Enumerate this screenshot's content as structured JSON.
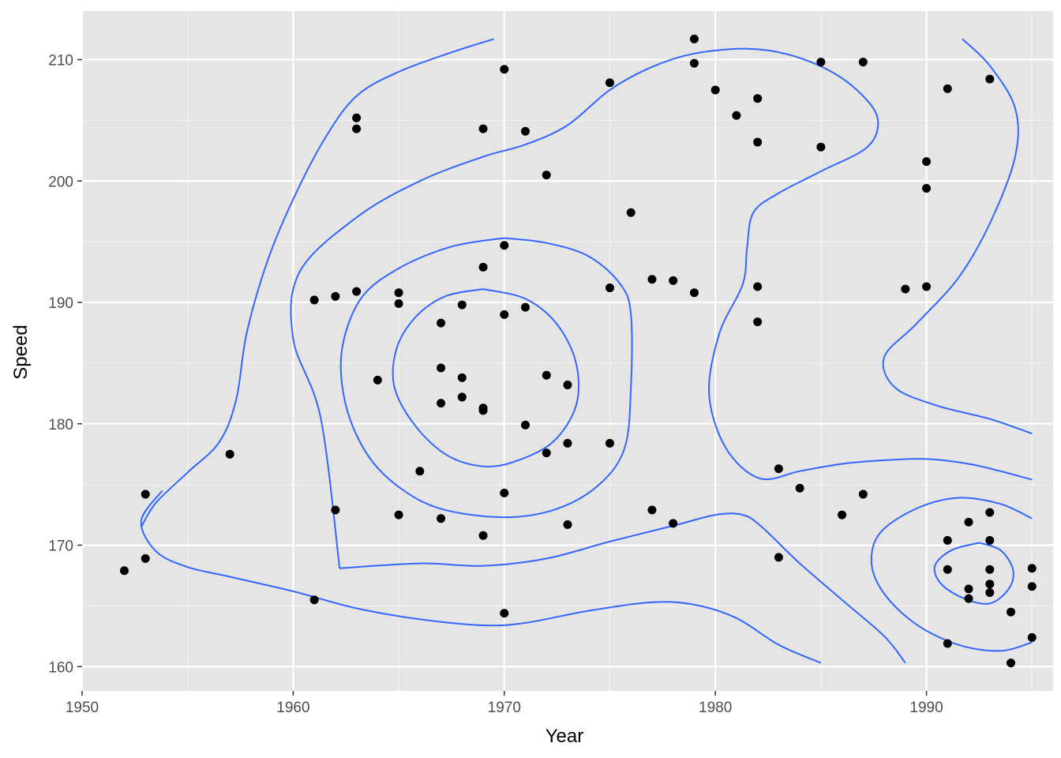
{
  "chart_data": {
    "type": "scatter",
    "title": "",
    "xlabel": "Year",
    "ylabel": "Speed",
    "xlim": [
      1950,
      1996
    ],
    "ylim": [
      158,
      214
    ],
    "x_ticks": [
      1950,
      1960,
      1970,
      1980,
      1990
    ],
    "y_ticks": [
      160,
      170,
      180,
      190,
      200,
      210
    ],
    "x_tick_labels": [
      "1950",
      "1960",
      "1970",
      "1980",
      "1990"
    ],
    "y_tick_labels": [
      "160",
      "170",
      "180",
      "190",
      "200",
      "210"
    ],
    "grid": true,
    "legend": "none",
    "point_color": "#000000",
    "contour_color": "#3366FF",
    "panel_background": "#E5E5E5",
    "points": [
      [
        1952,
        167.9
      ],
      [
        1953,
        174.2
      ],
      [
        1953,
        168.9
      ],
      [
        1957,
        177.5
      ],
      [
        1961,
        190.2
      ],
      [
        1961,
        165.5
      ],
      [
        1962,
        190.5
      ],
      [
        1962,
        172.9
      ],
      [
        1963,
        205.2
      ],
      [
        1963,
        204.3
      ],
      [
        1963,
        190.9
      ],
      [
        1964,
        183.6
      ],
      [
        1965,
        190.8
      ],
      [
        1965,
        189.9
      ],
      [
        1965,
        172.5
      ],
      [
        1966,
        176.1
      ],
      [
        1967,
        188.3
      ],
      [
        1967,
        184.6
      ],
      [
        1967,
        181.7
      ],
      [
        1967,
        172.2
      ],
      [
        1968,
        189.8
      ],
      [
        1968,
        183.8
      ],
      [
        1968,
        182.2
      ],
      [
        1969,
        204.3
      ],
      [
        1969,
        192.9
      ],
      [
        1969,
        181.3
      ],
      [
        1969,
        181.1
      ],
      [
        1969,
        170.8
      ],
      [
        1970,
        209.2
      ],
      [
        1970,
        194.7
      ],
      [
        1970,
        189.0
      ],
      [
        1970,
        174.3
      ],
      [
        1970,
        164.4
      ],
      [
        1971,
        204.1
      ],
      [
        1971,
        189.6
      ],
      [
        1971,
        179.9
      ],
      [
        1972,
        200.5
      ],
      [
        1972,
        184.0
      ],
      [
        1972,
        177.6
      ],
      [
        1973,
        183.2
      ],
      [
        1973,
        178.4
      ],
      [
        1973,
        171.7
      ],
      [
        1975,
        208.1
      ],
      [
        1975,
        191.2
      ],
      [
        1975,
        178.4
      ],
      [
        1976,
        197.4
      ],
      [
        1977,
        191.9
      ],
      [
        1977,
        172.9
      ],
      [
        1978,
        191.8
      ],
      [
        1978,
        171.8
      ],
      [
        1979,
        211.7
      ],
      [
        1979,
        209.7
      ],
      [
        1979,
        190.8
      ],
      [
        1980,
        207.5
      ],
      [
        1981,
        205.4
      ],
      [
        1982,
        206.8
      ],
      [
        1982,
        203.2
      ],
      [
        1982,
        191.3
      ],
      [
        1982,
        188.4
      ],
      [
        1983,
        176.3
      ],
      [
        1983,
        169.0
      ],
      [
        1984,
        174.7
      ],
      [
        1985,
        209.8
      ],
      [
        1985,
        202.8
      ],
      [
        1986,
        172.5
      ],
      [
        1987,
        209.8
      ],
      [
        1987,
        174.2
      ],
      [
        1989,
        191.1
      ],
      [
        1990,
        201.6
      ],
      [
        1990,
        199.4
      ],
      [
        1990,
        191.3
      ],
      [
        1991,
        207.6
      ],
      [
        1991,
        170.4
      ],
      [
        1991,
        168.0
      ],
      [
        1991,
        161.9
      ],
      [
        1992,
        171.9
      ],
      [
        1992,
        166.4
      ],
      [
        1992,
        165.6
      ],
      [
        1993,
        208.4
      ],
      [
        1993,
        172.7
      ],
      [
        1993,
        170.4
      ],
      [
        1993,
        168.0
      ],
      [
        1993,
        166.8
      ],
      [
        1993,
        166.1
      ],
      [
        1994,
        164.5
      ],
      [
        1994,
        160.3
      ],
      [
        1995,
        168.1
      ],
      [
        1995,
        166.6
      ],
      [
        1995,
        162.4
      ]
    ],
    "contours": [
      [
        [
          1952.8,
          171.5
        ],
        [
          1953.5,
          173.5
        ],
        [
          1955,
          176
        ],
        [
          1956.5,
          178.5
        ],
        [
          1957.3,
          182
        ],
        [
          1957.8,
          187.5
        ],
        [
          1958.8,
          193.5
        ],
        [
          1960,
          198.5
        ],
        [
          1961.5,
          203.5
        ],
        [
          1963,
          207
        ],
        [
          1965,
          209
        ],
        [
          1967.5,
          210.6
        ],
        [
          1969.5,
          211.7
        ]
      ],
      [
        [
          1953.8,
          174.5
        ],
        [
          1952.8,
          172
        ],
        [
          1953.5,
          169.5
        ],
        [
          1955,
          168.2
        ],
        [
          1957,
          167.4
        ],
        [
          1960,
          166.2
        ],
        [
          1963,
          164.8
        ],
        [
          1966,
          163.9
        ],
        [
          1969,
          163.4
        ],
        [
          1971,
          163.6
        ],
        [
          1974,
          164.6
        ],
        [
          1977,
          165.3
        ],
        [
          1979,
          165.1
        ],
        [
          1981,
          164
        ],
        [
          1983,
          161.8
        ],
        [
          1985,
          160.3
        ]
      ],
      [
        [
          1962.2,
          168.1
        ],
        [
          1961.3,
          180.5
        ],
        [
          1960,
          187
        ],
        [
          1960.3,
          192.5
        ],
        [
          1963,
          197
        ],
        [
          1966,
          200
        ],
        [
          1969,
          202
        ],
        [
          1971,
          203
        ],
        [
          1973,
          204.6
        ],
        [
          1975,
          207.5
        ],
        [
          1977,
          209.4
        ],
        [
          1979,
          210.5
        ],
        [
          1981.5,
          210.9
        ],
        [
          1983.5,
          210.4
        ],
        [
          1985.5,
          209
        ],
        [
          1987,
          207
        ],
        [
          1987.7,
          205
        ],
        [
          1987.2,
          202.8
        ],
        [
          1985,
          200.8
        ],
        [
          1983,
          199
        ],
        [
          1981.8,
          197.4
        ],
        [
          1981.5,
          194.5
        ],
        [
          1981.3,
          191.5
        ],
        [
          1980.2,
          187.5
        ],
        [
          1979.7,
          182.5
        ],
        [
          1980.5,
          178
        ],
        [
          1982.1,
          175.5
        ],
        [
          1984,
          176.1
        ],
        [
          1986,
          176.7
        ],
        [
          1988,
          177
        ],
        [
          1990,
          177.1
        ],
        [
          1992,
          176.7
        ],
        [
          1993.5,
          176.1
        ],
        [
          1995,
          175.4
        ]
      ],
      [
        [
          1962.2,
          168.1
        ],
        [
          1966,
          168.5
        ],
        [
          1969,
          168.3
        ],
        [
          1972,
          168.9
        ],
        [
          1975,
          170.3
        ],
        [
          1978,
          171.6
        ],
        [
          1980,
          172.5
        ],
        [
          1981.3,
          172.5
        ],
        [
          1982.2,
          171.5
        ],
        [
          1984,
          168.5
        ],
        [
          1986,
          165.5
        ],
        [
          1988,
          162.5
        ],
        [
          1989,
          160.3
        ]
      ],
      [
        [
          1970,
          195.3
        ],
        [
          1972,
          194.9
        ],
        [
          1974,
          193.8
        ],
        [
          1975.5,
          191.5
        ],
        [
          1976,
          189
        ],
        [
          1976,
          183
        ],
        [
          1975.7,
          178
        ],
        [
          1974.5,
          175
        ],
        [
          1972.5,
          173
        ],
        [
          1970,
          172.3
        ],
        [
          1967,
          173
        ],
        [
          1965,
          174.8
        ],
        [
          1963.5,
          177.5
        ],
        [
          1962.5,
          181.5
        ],
        [
          1962.3,
          186
        ],
        [
          1963.2,
          190.3
        ],
        [
          1965,
          192.8
        ],
        [
          1967.5,
          194.6
        ],
        [
          1970,
          195.3
        ]
      ],
      [
        [
          1969,
          191.1
        ],
        [
          1971,
          190.3
        ],
        [
          1972.5,
          188.2
        ],
        [
          1973.4,
          185
        ],
        [
          1973.4,
          181.5
        ],
        [
          1972.3,
          178.5
        ],
        [
          1970.5,
          176.9
        ],
        [
          1969,
          176.5
        ],
        [
          1967.3,
          177.4
        ],
        [
          1965.8,
          179.8
        ],
        [
          1964.8,
          183
        ],
        [
          1964.9,
          186.2
        ],
        [
          1965.8,
          188.8
        ],
        [
          1967.2,
          190.5
        ],
        [
          1969,
          191.1
        ]
      ],
      [
        [
          1991.7,
          211.7
        ],
        [
          1993,
          209.5
        ],
        [
          1994.2,
          206
        ],
        [
          1994.2,
          202
        ],
        [
          1993,
          196.5
        ],
        [
          1991.5,
          192
        ],
        [
          1989.5,
          188.2
        ],
        [
          1988,
          185.5
        ],
        [
          1988.5,
          183
        ],
        [
          1990.5,
          181.5
        ],
        [
          1993,
          180.4
        ],
        [
          1995,
          179.2
        ]
      ],
      [
        [
          1995,
          172.2
        ],
        [
          1993.5,
          173.4
        ],
        [
          1991.5,
          173.9
        ],
        [
          1989.5,
          173
        ],
        [
          1987.8,
          171
        ],
        [
          1987.4,
          168.5
        ],
        [
          1988,
          166
        ],
        [
          1989.5,
          163.5
        ],
        [
          1991.5,
          161.8
        ],
        [
          1993.5,
          161.3
        ],
        [
          1995,
          162
        ]
      ],
      [
        [
          1992.5,
          170.2
        ],
        [
          1993.5,
          169.6
        ],
        [
          1994.1,
          168
        ],
        [
          1993.9,
          166.4
        ],
        [
          1993,
          165.2
        ],
        [
          1991.8,
          165.6
        ],
        [
          1990.7,
          166.8
        ],
        [
          1990.4,
          168.3
        ],
        [
          1991.2,
          169.6
        ],
        [
          1992.5,
          170.2
        ]
      ]
    ]
  }
}
